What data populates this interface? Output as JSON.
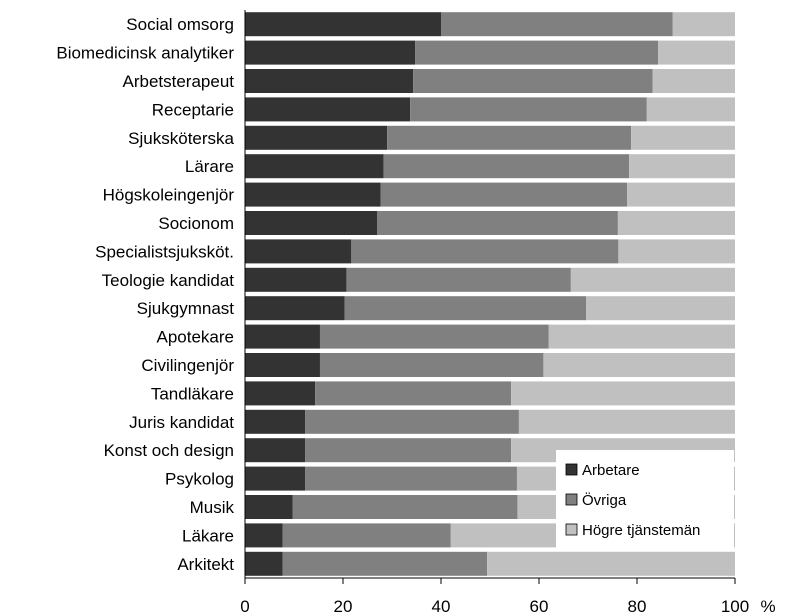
{
  "chart_data": {
    "type": "bar",
    "orientation": "horizontal",
    "stacked": true,
    "categories": [
      "Social omsorg",
      "Biomedicinsk analytiker",
      "Arbetsterapeut",
      "Receptarie",
      "Sjuksköterska",
      "Lärare",
      "Högskoleingenjör",
      "Socionom",
      "Specialistsjuksköt.",
      "Teologie kandidat",
      "Sjukgymnast",
      "Apotekare",
      "Civilingenjör",
      "Tandläkare",
      "Juris kandidat",
      "Konst och design",
      "Psykolog",
      "Musik",
      "Läkare",
      "Arkitekt"
    ],
    "series": [
      {
        "name": "Arbetare",
        "color": "#333333",
        "values": [
          40,
          34.7,
          34.3,
          33.7,
          29,
          28.3,
          27.7,
          27,
          21.7,
          20.7,
          20.3,
          15.3,
          15.3,
          14.3,
          12.3,
          12.3,
          12.3,
          9.7,
          7.7,
          7.7
        ]
      },
      {
        "name": "Övriga",
        "color": "#808080",
        "values": [
          47.3,
          49.6,
          48.9,
          48.3,
          49.8,
          50.1,
          50.3,
          49.1,
          54.5,
          45.8,
          49.3,
          46.7,
          45.6,
          40,
          43.6,
          42,
          43.2,
          45.9,
          34.3,
          41.7
        ]
      },
      {
        "name": "Högre tjänstemän",
        "color": "#c0c0c0",
        "values": [
          12.7,
          15.7,
          16.8,
          18,
          21.2,
          21.6,
          22,
          23.9,
          23.8,
          33.5,
          30.4,
          38,
          39.1,
          45.7,
          44.1,
          45.7,
          44.5,
          44.4,
          58,
          50.6
        ]
      }
    ],
    "xlim": [
      0,
      100
    ],
    "xticks": [
      0,
      20,
      40,
      60,
      80,
      100
    ],
    "xunit": "%",
    "legend": {
      "position": "bottom-right",
      "entries": [
        "Arbetare",
        "Övriga",
        "Högre tjänstemän"
      ]
    }
  }
}
